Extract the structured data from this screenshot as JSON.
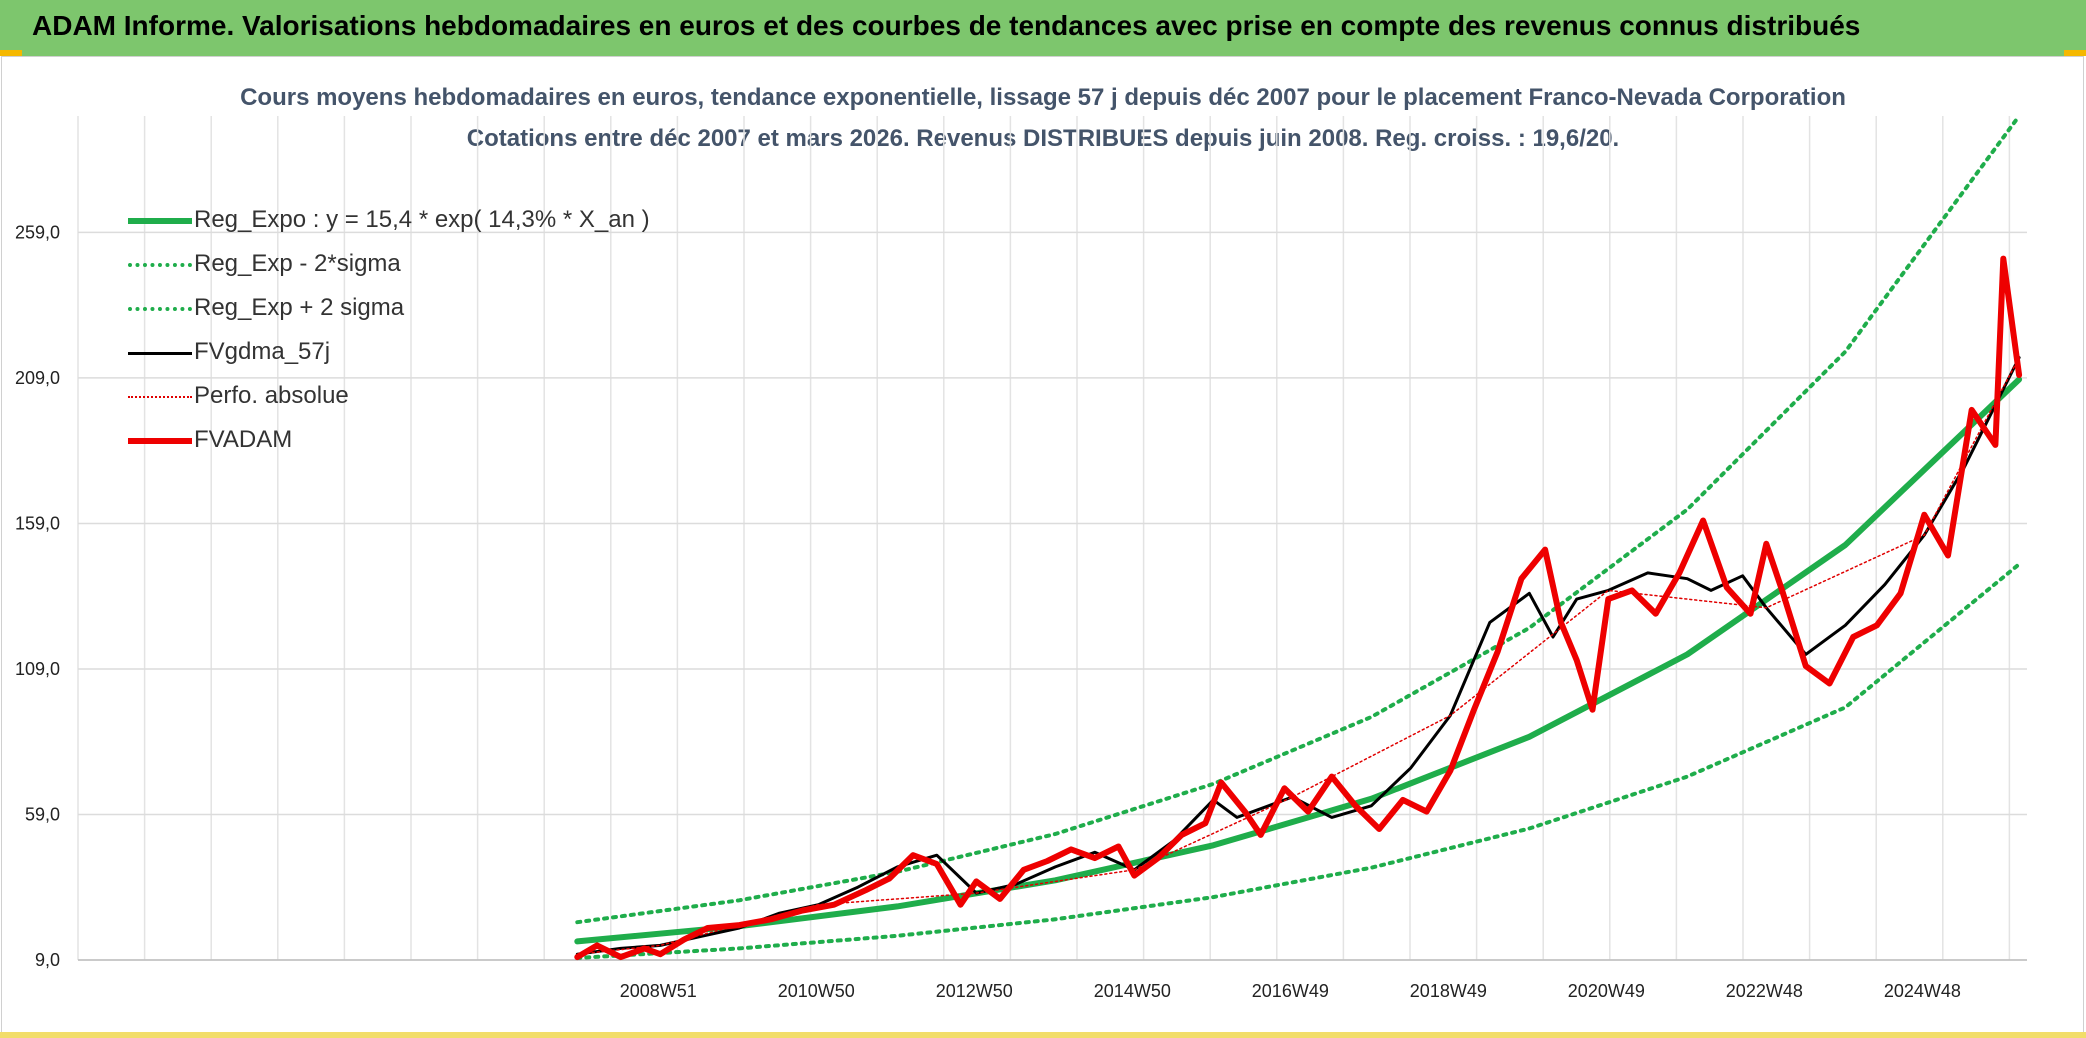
{
  "banner": {
    "title": "ADAM Informe. Valorisations hebdomadaires en euros et des courbes de tendances avec prise en compte des revenus connus distribués"
  },
  "chart_data": {
    "type": "line",
    "title": "Cours moyens hebdomadaires en euros, tendance exponentielle, lissage 57 j depuis déc 2007 pour le placement Franco-Nevada Corporation",
    "subtitle": "Cotations entre déc 2007 et mars 2026. Revenus DISTRIBUES depuis juin 2008. Reg. croiss. : 19,6/20.",
    "y_ticks": [
      "9,0",
      "59,0",
      "109,0",
      "159,0",
      "209,0",
      "259,0"
    ],
    "ylim": [
      9,
      299
    ],
    "x_ticks": [
      "2008W51",
      "2010W50",
      "2012W50",
      "2014W50",
      "2016W49",
      "2018W49",
      "2020W49",
      "2022W48",
      "2024W48"
    ],
    "grid": true,
    "legend_position": "top-left",
    "series": [
      {
        "name": "Reg_Expo : y = 15,4 * exp( 14,3% *  X_an )",
        "color": "#1fad4b",
        "style": "solid-thick",
        "x": [
          2007.95,
          2010,
          2012,
          2014,
          2016,
          2018,
          2020,
          2022,
          2024,
          2026.2
        ],
        "values": [
          15.4,
          20.6,
          27.4,
          36.4,
          48.4,
          64.4,
          85.7,
          114.0,
          151.6,
          208.5
        ]
      },
      {
        "name": "Reg_Exp - 2*sigma",
        "color": "#1fad4b",
        "style": "dotted",
        "x": [
          2007.95,
          2010,
          2012,
          2014,
          2016,
          2018,
          2020,
          2022,
          2024,
          2026.2
        ],
        "values": [
          9.7,
          13.0,
          17.3,
          23.0,
          30.6,
          40.7,
          54.2,
          72.0,
          95.8,
          145.0
        ]
      },
      {
        "name": "Reg_Exp + 2 sigma",
        "color": "#1fad4b",
        "style": "dotted",
        "x": [
          2007.95,
          2010,
          2012,
          2014,
          2016,
          2018,
          2020,
          2022,
          2024,
          2026.2
        ],
        "values": [
          22.0,
          29.5,
          39.3,
          52.3,
          69.5,
          92.5,
          123.1,
          163.8,
          218.0,
          299.0
        ]
      },
      {
        "name": "FVgdma_57j",
        "color": "#000000",
        "style": "solid",
        "x": [
          2007.95,
          2008.5,
          2009,
          2009.5,
          2010,
          2010.5,
          2011,
          2011.5,
          2012,
          2012.5,
          2013,
          2013.5,
          2014,
          2014.5,
          2015,
          2015.5,
          2016,
          2016.3,
          2016.7,
          2017,
          2017.5,
          2018,
          2018.5,
          2019,
          2019.5,
          2020,
          2020.3,
          2020.6,
          2021,
          2021.5,
          2022,
          2022.3,
          2022.7,
          2023,
          2023.5,
          2024,
          2024.5,
          2025,
          2025.5,
          2026.2
        ],
        "values": [
          11,
          13,
          14,
          17,
          20,
          25,
          28,
          34,
          41,
          45,
          32,
          35,
          41,
          46,
          40,
          50,
          64,
          58,
          62,
          65,
          58,
          62,
          75,
          93,
          125,
          135,
          120,
          133,
          136,
          142,
          140,
          136,
          141,
          130,
          114,
          124,
          138,
          155,
          178,
          216
        ]
      },
      {
        "name": "Perfo. absolue",
        "color": "#e00000",
        "style": "dotted",
        "x": [
          2007.95,
          2009,
          2011,
          2013,
          2015,
          2017,
          2019,
          2021,
          2023,
          2025,
          2026.2
        ],
        "values": [
          11,
          14,
          28,
          32,
          40,
          65,
          93,
          136,
          130,
          155,
          216
        ]
      },
      {
        "name": "FVADAM",
        "color": "#ee0000",
        "style": "solid-thick",
        "x": [
          2007.95,
          2008.2,
          2008.5,
          2008.8,
          2009,
          2009.3,
          2009.6,
          2010,
          2010.4,
          2010.8,
          2011.2,
          2011.6,
          2011.9,
          2012.2,
          2012.5,
          2012.8,
          2013,
          2013.3,
          2013.6,
          2013.9,
          2014.2,
          2014.5,
          2014.8,
          2015,
          2015.3,
          2015.6,
          2015.9,
          2016.1,
          2016.4,
          2016.6,
          2016.9,
          2017.2,
          2017.5,
          2017.8,
          2018.1,
          2018.4,
          2018.7,
          2019,
          2019.3,
          2019.6,
          2019.9,
          2020.2,
          2020.4,
          2020.6,
          2020.8,
          2021,
          2021.3,
          2021.6,
          2021.9,
          2022.2,
          2022.5,
          2022.8,
          2023.0,
          2023.2,
          2023.5,
          2023.8,
          2024.1,
          2024.4,
          2024.7,
          2025.0,
          2025.3,
          2025.6,
          2025.9,
          2026.0,
          2026.2
        ],
        "values": [
          10,
          14,
          10,
          13,
          11,
          16,
          20,
          21,
          23,
          26,
          28,
          33,
          37,
          45,
          42,
          28,
          36,
          30,
          40,
          43,
          47,
          44,
          48,
          38,
          44,
          52,
          56,
          70,
          60,
          52,
          68,
          60,
          72,
          62,
          54,
          64,
          60,
          74,
          95,
          115,
          140,
          150,
          125,
          112,
          95,
          133,
          136,
          128,
          142,
          160,
          137,
          128,
          152,
          136,
          110,
          104,
          120,
          124,
          135,
          162,
          148,
          198,
          186,
          250,
          210
        ]
      }
    ]
  }
}
